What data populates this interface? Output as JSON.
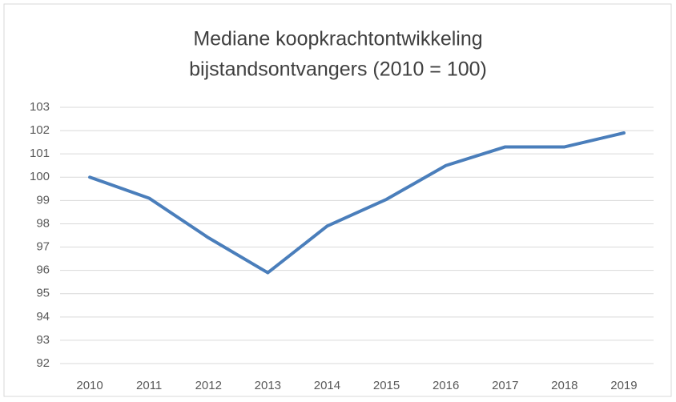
{
  "chart_data": {
    "type": "line",
    "title": [
      "Mediane koopkrachtontwikkeling",
      "bijstandsontvangers (2010 = 100)"
    ],
    "categories": [
      "2010",
      "2011",
      "2012",
      "2013",
      "2014",
      "2015",
      "2016",
      "2017",
      "2018",
      "2019"
    ],
    "values": [
      100,
      99.1,
      97.4,
      95.9,
      97.9,
      99.05,
      100.5,
      101.3,
      101.3,
      101.9
    ],
    "color": "#4a7ebb",
    "ylim": [
      92,
      103
    ],
    "yticks": [
      92,
      93,
      94,
      95,
      96,
      97,
      98,
      99,
      100,
      101,
      102,
      103
    ],
    "grid": true
  }
}
